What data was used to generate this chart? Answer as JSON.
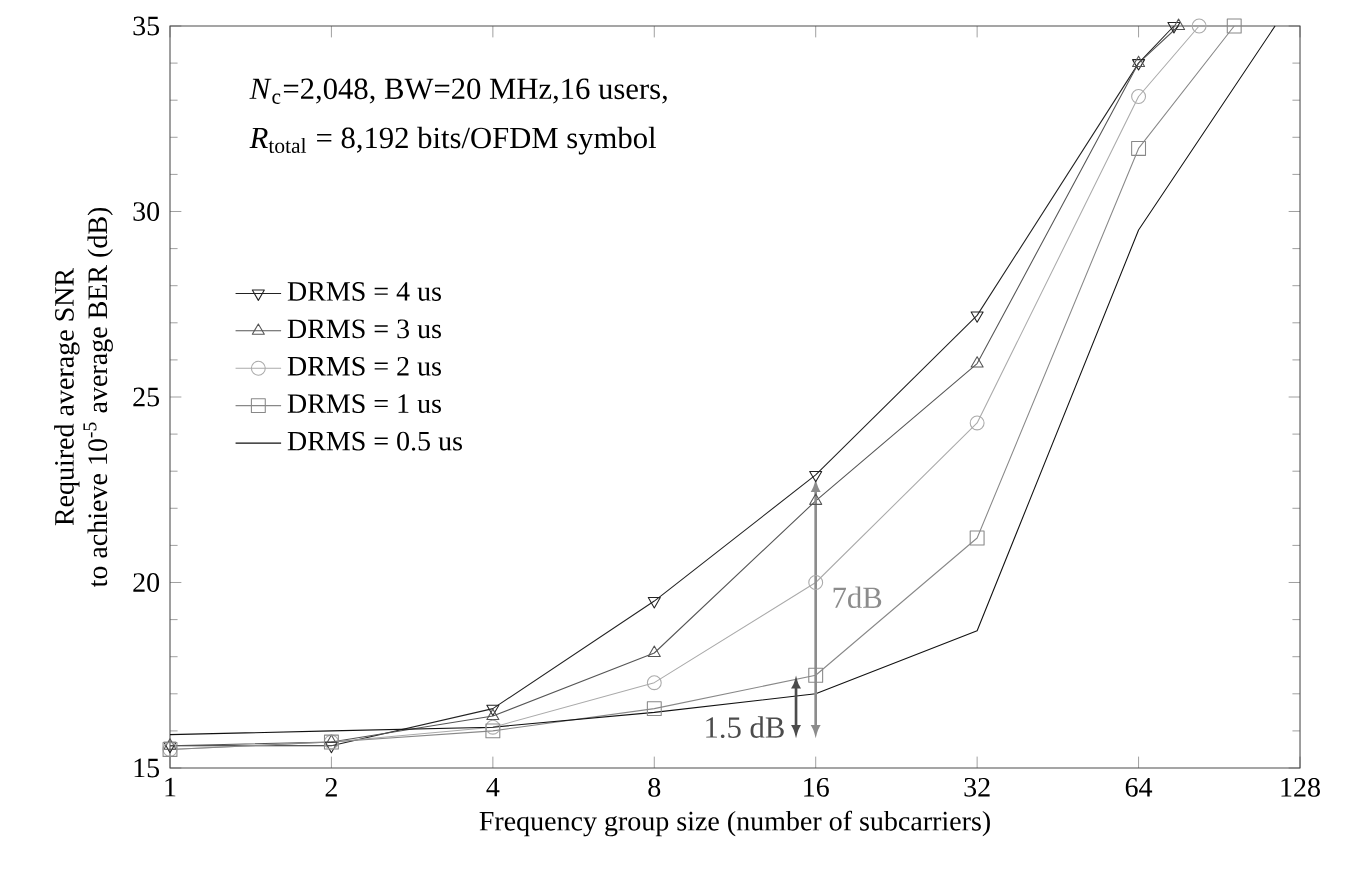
{
  "chart_data": {
    "type": "line",
    "xlabel": "Frequency group size  (number of subcarriers)",
    "ylabel": [
      "Required average SNR",
      "to achieve 10$^{-5}$ average BER (dB)"
    ],
    "series": [
      {
        "name": "DRMS = 4 us",
        "color": "#222222",
        "marker": "triangle_down",
        "x": [
          1,
          2,
          4,
          8,
          16,
          32,
          64,
          74.5
        ],
        "values": [
          15.6,
          15.6,
          16.6,
          19.5,
          22.9,
          27.2,
          34.0,
          35
        ]
      },
      {
        "name": "DRMS = 3 us",
        "color": "#555555",
        "marker": "triangle",
        "x": [
          1,
          2,
          4,
          8,
          16,
          32,
          64,
          76
        ],
        "values": [
          15.6,
          15.7,
          16.4,
          18.1,
          22.2,
          25.9,
          34.0,
          35
        ]
      },
      {
        "name": "DRMS = 2 us",
        "color": "#aaaaaa",
        "marker": "circle",
        "x": [
          1,
          2,
          4,
          8,
          16,
          32,
          64,
          83
        ],
        "values": [
          15.5,
          15.7,
          16.1,
          17.3,
          20.0,
          24.3,
          33.1,
          35
        ]
      },
      {
        "name": "DRMS = 1 us",
        "color": "#888888",
        "marker": "square",
        "x": [
          1,
          2,
          4,
          8,
          16,
          32,
          64,
          96.5
        ],
        "values": [
          15.5,
          15.7,
          16.0,
          16.6,
          17.5,
          21.2,
          31.7,
          35
        ]
      },
      {
        "name": "DRMS = 0.5 us",
        "color": "#111111",
        "marker": "none",
        "x": [
          1,
          2,
          4,
          8,
          16,
          32,
          64,
          115
        ],
        "values": [
          15.9,
          16.0,
          16.1,
          16.5,
          17.0,
          18.7,
          29.5,
          35
        ]
      }
    ],
    "annotations": [
      "*N*$_{c}$=2,048, BW=20 MHz,16 users,",
      "*R*$_{total}$ = 8,192 bits/OFDM symbol",
      "7dB",
      "1.5 dB"
    ],
    "xlim": [
      1,
      128
    ],
    "xticks": [
      1,
      2,
      4,
      8,
      16,
      32,
      64,
      128
    ],
    "ylim": [
      15,
      35
    ],
    "yticks": [
      15,
      20,
      25,
      30,
      35
    ],
    "log": "x",
    "grid": false,
    "legend": "top left"
  }
}
